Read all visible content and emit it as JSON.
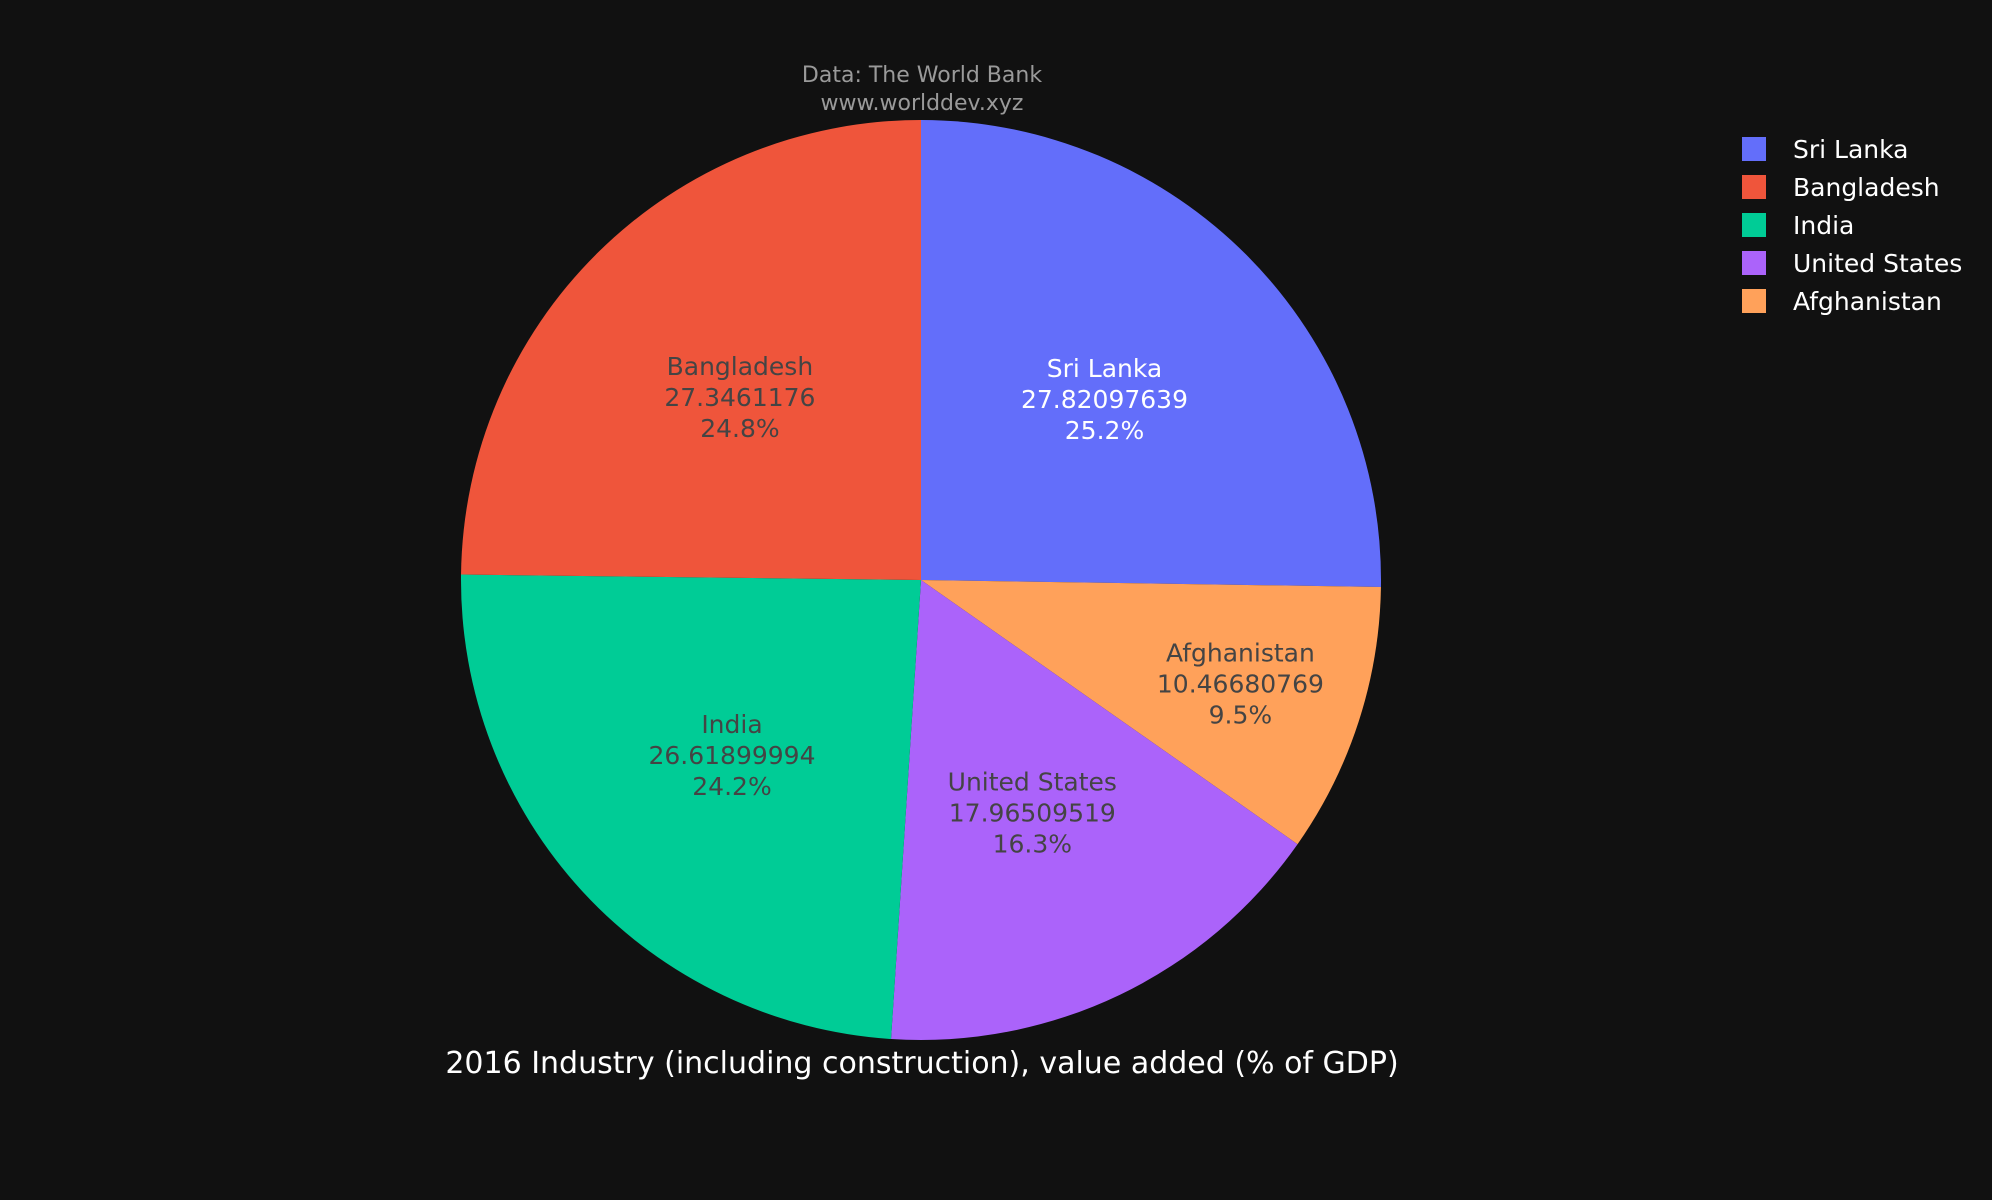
{
  "chart_data": {
    "type": "pie",
    "title": "2016 Industry (including construction), value added (% of GDP)",
    "source_lines": [
      "Data: The World Bank",
      "www.worlddev.xyz"
    ],
    "legend_position": "top-right",
    "direction": "clockwise",
    "start_angle": "12 o'clock",
    "slices": [
      {
        "label": "Sri Lanka",
        "value": 27.82097639,
        "value_text": "27.82097639",
        "percent_text": "25.2%",
        "color": "#636efa",
        "text_color": "#ffffff"
      },
      {
        "label": "Afghanistan",
        "value": 10.46680769,
        "value_text": "10.46680769",
        "percent_text": "9.5%",
        "color": "#ffa15a",
        "text_color": "#444444"
      },
      {
        "label": "United States",
        "value": 17.96509519,
        "value_text": "17.96509519",
        "percent_text": "16.3%",
        "color": "#ab63fa",
        "text_color": "#444444"
      },
      {
        "label": "India",
        "value": 26.61899994,
        "value_text": "26.61899994",
        "percent_text": "24.2%",
        "color": "#00cc96",
        "text_color": "#444444"
      },
      {
        "label": "Bangladesh",
        "value": 27.3461176,
        "value_text": "27.3461176",
        "percent_text": "24.8%",
        "color": "#ef553b",
        "text_color": "#444444"
      }
    ],
    "legend": [
      {
        "label": "Sri Lanka",
        "color": "#636efa"
      },
      {
        "label": "Bangladesh",
        "color": "#ef553b"
      },
      {
        "label": "India",
        "color": "#00cc96"
      },
      {
        "label": "United States",
        "color": "#ab63fa"
      },
      {
        "label": "Afghanistan",
        "color": "#ffa15a"
      }
    ]
  }
}
